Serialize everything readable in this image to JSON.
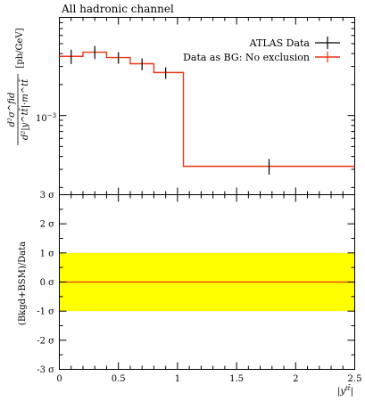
{
  "chart_data": [
    {
      "type": "line",
      "title": "All hadronic channel",
      "ylabel_num": "d²σ^fid",
      "ylabel_den": "d²|y^tt̄|·m^tt̄",
      "ylabel_unit": "[pb/GeV]",
      "yscale": "log",
      "ylim": [
        0.00017,
        0.009
      ],
      "xlim": [
        0,
        2.5
      ],
      "y_tick_label": "10^{-3}",
      "legend_position": "top-right",
      "series": [
        {
          "name": "ATLAS Data",
          "kind": "points-with-errors",
          "color": "#000000",
          "x": [
            0.1,
            0.3,
            0.5,
            0.7,
            0.9,
            1.775
          ],
          "y": [
            0.00376,
            0.00413,
            0.00366,
            0.00319,
            0.00262,
            0.000321
          ],
          "yerr_low": [
            0.00059,
            0.00059,
            0.00047,
            0.00043,
            0.00035,
            5.4e-05
          ],
          "yerr_high": [
            0.0006,
            0.00062,
            0.00047,
            0.0004,
            0.00032,
            5.7e-05
          ]
        },
        {
          "name": "Data as BG: No exclusion",
          "kind": "step",
          "color": "#ee3311",
          "edges": [
            0.0,
            0.2,
            0.4,
            0.6,
            0.8,
            1.05,
            2.5
          ],
          "values": [
            0.00376,
            0.00413,
            0.00366,
            0.00319,
            0.00262,
            0.000321
          ]
        }
      ]
    },
    {
      "type": "line",
      "ylabel": "(Bkgd+BSM)/Data",
      "xlabel": "|y^{tt̄}|",
      "xlim": [
        0,
        2.5
      ],
      "ylim": [
        -3,
        3
      ],
      "x_ticks": [
        0,
        0.5,
        1,
        1.5,
        2,
        2.5
      ],
      "x_tick_labels": [
        "0",
        "0.5",
        "1",
        "1.5",
        "2",
        "2.5"
      ],
      "y_ticks": [
        3,
        2,
        1,
        0,
        -1,
        -2,
        -3
      ],
      "y_tick_labels": [
        "3 σ",
        "2 σ",
        "1 σ",
        "0 σ",
        "-1 σ",
        "-2 σ",
        "-3 σ"
      ],
      "band": {
        "low": -1,
        "high": 1,
        "color": "#ffff00"
      },
      "series": [
        {
          "name": "",
          "kind": "flat-line",
          "color": "#ee3311",
          "y": 0
        }
      ]
    }
  ]
}
